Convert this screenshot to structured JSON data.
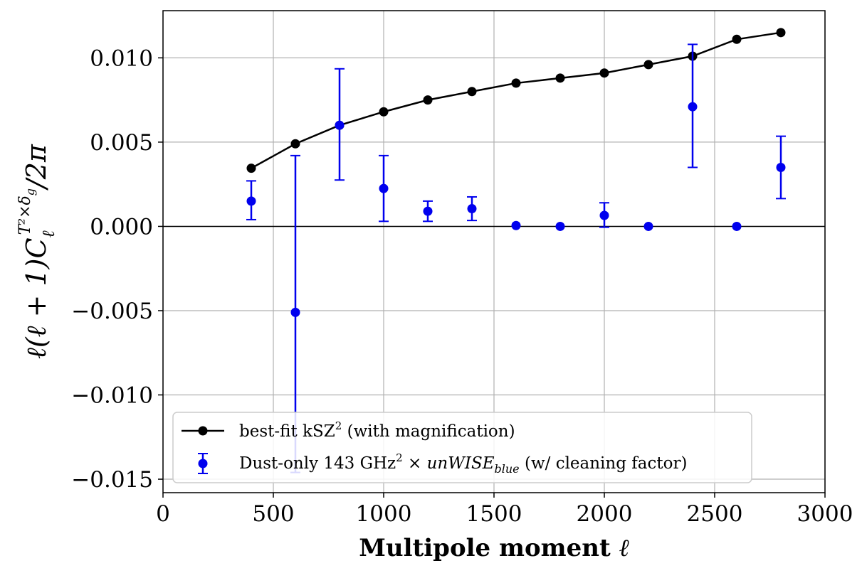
{
  "chart_data": {
    "type": "scatter",
    "title": "",
    "xlabel": "Multipole moment ℓ",
    "ylabel": "ℓ(ℓ + 1)Cℓ^(T²×δg)/2π",
    "xlim": [
      0,
      3000
    ],
    "ylim": [
      -0.0158,
      0.0128
    ],
    "xticks": [
      0,
      500,
      1000,
      1500,
      2000,
      2500,
      3000
    ],
    "xtick_labels": [
      "0",
      "500",
      "1000",
      "1500",
      "2000",
      "2500",
      "3000"
    ],
    "yticks": [
      -0.015,
      -0.01,
      -0.005,
      0.0,
      0.005,
      0.01
    ],
    "ytick_labels": [
      "−0.015",
      "−0.010",
      "−0.005",
      "0.000",
      "0.005",
      "0.010"
    ],
    "grid": true,
    "zero_line": true,
    "legend_position": "lower-left",
    "series": [
      {
        "name": "best-fit kSZ² (with magnification)",
        "style": "line-markers",
        "color": "#000000",
        "x": [
          400,
          600,
          800,
          1000,
          1200,
          1400,
          1600,
          1800,
          2000,
          2200,
          2400,
          2600,
          2800
        ],
        "y": [
          0.00345,
          0.0049,
          0.006,
          0.0068,
          0.0075,
          0.008,
          0.0085,
          0.0088,
          0.0091,
          0.0096,
          0.0101,
          0.0111,
          0.0115
        ]
      },
      {
        "name": "Dust-only 143 GHz² × unWISE_blue (w/ cleaning factor)",
        "style": "errorbar",
        "color": "#0000ee",
        "x": [
          400,
          600,
          800,
          1000,
          1200,
          1400,
          1600,
          1800,
          2000,
          2200,
          2600,
          2400,
          2800
        ],
        "y": [
          0.0015,
          -0.0051,
          0.006,
          0.00225,
          0.0009,
          0.00105,
          5e-05,
          0.0,
          0.00065,
          0.0,
          0.0,
          0.0071,
          0.0035
        ],
        "yerr_low": [
          0.0011,
          0.0095,
          0.00325,
          0.00195,
          0.0006,
          0.0007,
          0.0,
          0.0,
          0.0007,
          0.0,
          0.0,
          0.0036,
          0.00185
        ],
        "yerr_high": [
          0.0012,
          0.0093,
          0.00335,
          0.00195,
          0.0006,
          0.0007,
          0.0,
          0.0,
          0.00075,
          0.0,
          0.0,
          0.0037,
          0.00185
        ]
      }
    ]
  },
  "legend": {
    "line_label_pre": "best-fit kSZ",
    "line_label_sup": "2",
    "line_label_post": " (with magnification)",
    "err_label_pre": "Dust-only 143 GHz",
    "err_label_sup": "2",
    "err_label_times": " × ",
    "err_label_italic": "unWISE",
    "err_label_sub": "blue",
    "err_label_post": " (w/ cleaning factor)"
  },
  "axis_text": {
    "xlabel_text": "Multipole moment ",
    "xlabel_symbol": "ℓ",
    "ylabel_main": "ℓ(ℓ + 1)C",
    "ylabel_sub": "ℓ",
    "ylabel_sup": "T²×δ",
    "ylabel_sup_sub": "g",
    "ylabel_tail": "/2π"
  }
}
